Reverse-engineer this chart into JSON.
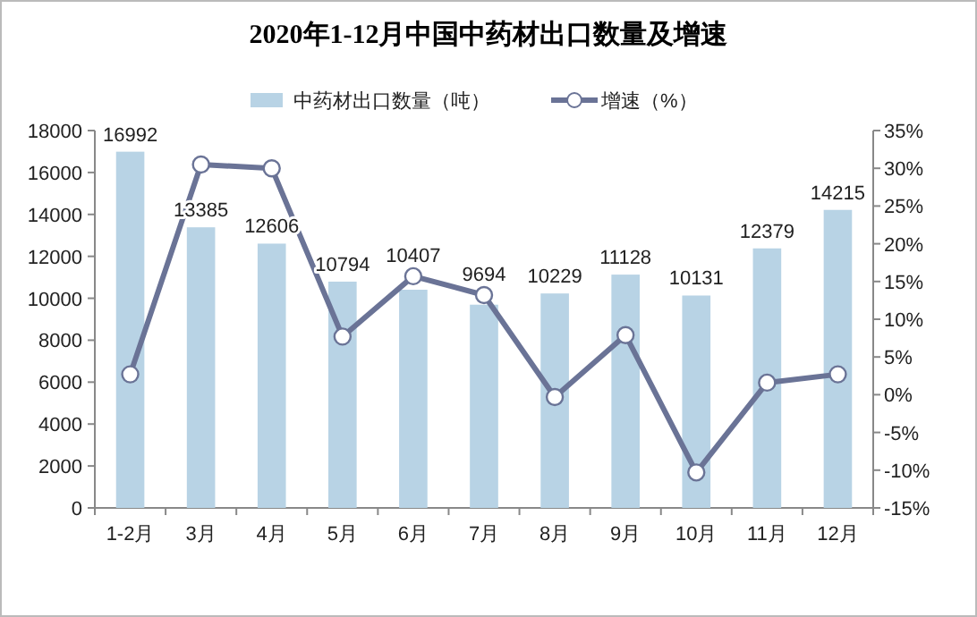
{
  "chart_data": {
    "type": "bar",
    "title": "2020年1-12月中国中药材出口数量及增速",
    "categories": [
      "1-2月",
      "3月",
      "4月",
      "5月",
      "6月",
      "7月",
      "8月",
      "9月",
      "10月",
      "11月",
      "12月"
    ],
    "series": [
      {
        "name": "中药材出口数量（吨）",
        "color": "#b8d3e5",
        "values": [
          16992,
          13385,
          12606,
          10794,
          10407,
          9694,
          10229,
          11128,
          10131,
          12379,
          14215
        ],
        "value_labels": [
          "16992",
          "13385",
          "12606",
          "10794",
          "10407",
          "9694",
          "10229",
          "11128",
          "10131",
          "12379",
          "14215"
        ]
      },
      {
        "name": "增速（%）",
        "type": "line",
        "axis": "y2",
        "color": "#6a7396",
        "marker": "circle",
        "values": [
          2.7,
          30.5,
          30.0,
          7.7,
          15.7,
          13.2,
          -0.3,
          7.9,
          -10.3,
          1.6,
          2.7
        ]
      }
    ],
    "ylim": [
      0,
      18000
    ],
    "yticks": [
      0,
      2000,
      4000,
      6000,
      8000,
      10000,
      12000,
      14000,
      16000,
      18000
    ],
    "y2lim": [
      -15,
      35
    ],
    "y2ticks": [
      {
        "value": -15,
        "label": "-15%"
      },
      {
        "value": -10,
        "label": "-10%"
      },
      {
        "value": -5,
        "label": "-5%"
      },
      {
        "value": 0,
        "label": "0%"
      },
      {
        "value": 5,
        "label": "5%"
      },
      {
        "value": 10,
        "label": "10%"
      },
      {
        "value": 15,
        "label": "15%"
      },
      {
        "value": 20,
        "label": "20%"
      },
      {
        "value": 25,
        "label": "25%"
      },
      {
        "value": 30,
        "label": "30%"
      },
      {
        "value": 35,
        "label": "35%"
      }
    ],
    "grid": false,
    "legend": "top"
  }
}
